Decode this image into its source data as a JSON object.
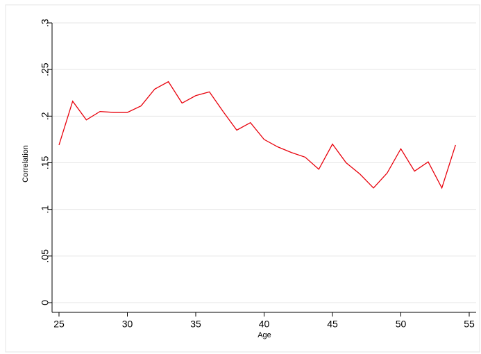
{
  "chart_data": {
    "type": "line",
    "x_label": "Age",
    "y_label": "Correlation",
    "x": [
      25,
      26,
      27,
      28,
      29,
      30,
      31,
      32,
      33,
      34,
      35,
      36,
      37,
      38,
      39,
      40,
      41,
      42,
      43,
      44,
      45,
      46,
      47,
      48,
      49,
      50,
      51,
      52,
      53,
      54
    ],
    "series": [
      {
        "color": "#e8000b",
        "values": [
          0.169,
          0.216,
          0.196,
          0.205,
          0.204,
          0.204,
          0.211,
          0.229,
          0.237,
          0.214,
          0.222,
          0.226,
          0.205,
          0.185,
          0.193,
          0.175,
          0.167,
          0.161,
          0.156,
          0.143,
          0.17,
          0.15,
          0.138,
          0.123,
          0.139,
          0.165,
          0.141,
          0.151,
          0.123,
          0.169
        ]
      }
    ],
    "xlim": [
      25,
      55
    ],
    "xticks": [
      25,
      30,
      35,
      40,
      45,
      50,
      55
    ],
    "ylim": [
      0,
      0.3
    ],
    "yticks": [
      0,
      {
        "value": 0.05,
        "label": ".05"
      },
      {
        "value": 0.1,
        "label": ".1"
      },
      {
        "value": 0.15,
        "label": ".15"
      },
      {
        "value": 0.2,
        "label": ".2"
      },
      {
        "value": 0.25,
        "label": ".25"
      },
      {
        "value": 0.3,
        "label": ".3"
      }
    ],
    "grid": true
  }
}
